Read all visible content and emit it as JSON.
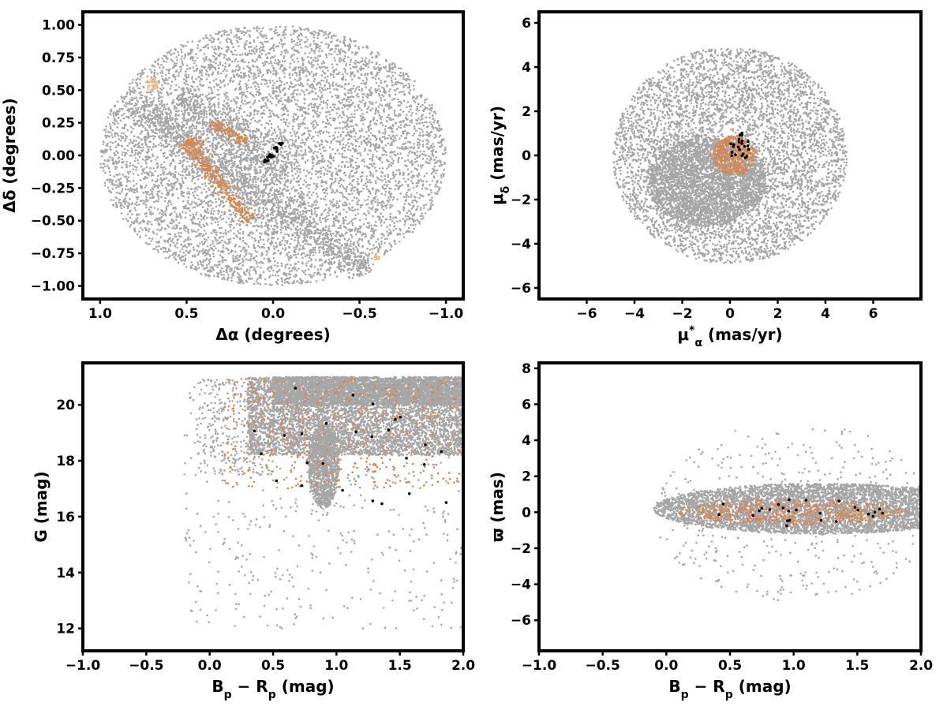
{
  "colors": {
    "field_stars": "#a6a6a6",
    "orange_members": "#d8864f",
    "light_orange": "#f2b98a",
    "black_members": "#000000"
  },
  "chart_data": [
    {
      "id": "sky",
      "type": "scatter",
      "xlabel_main": "Δα",
      "xlabel_unit": " (degrees)",
      "ylabel_main": "Δδ",
      "ylabel_unit": " (degrees)",
      "xlim": [
        1.1,
        -1.1
      ],
      "ylim": [
        -1.1,
        1.1
      ],
      "xticks": [
        1.0,
        0.5,
        0.0,
        -0.5,
        -1.0
      ],
      "xtick_labels": [
        "1.0",
        "0.5",
        "0.0",
        "−0.5",
        "−1.0"
      ],
      "yticks": [
        -1.0,
        -0.75,
        -0.5,
        -0.25,
        0.0,
        0.25,
        0.5,
        0.75,
        1.0
      ],
      "ytick_labels": [
        "−1.00",
        "−0.75",
        "−0.50",
        "−0.25",
        "0.00",
        "0.25",
        "0.50",
        "0.75",
        "1.00"
      ],
      "series": [
        {
          "role": "field",
          "color": "#a6a6a6",
          "shape": "ellipse",
          "center": [
            0.0,
            0.0
          ],
          "radius": [
            1.0,
            1.0
          ],
          "count": 7000
        },
        {
          "role": "field-stream",
          "color": "#a6a6a6",
          "shape": "band",
          "from": [
            0.8,
            0.4
          ],
          "to": [
            -0.55,
            -0.9
          ],
          "width": 0.1,
          "count": 1100
        },
        {
          "role": "field-stream",
          "color": "#a6a6a6",
          "shape": "band",
          "from": [
            0.55,
            0.45
          ],
          "to": [
            -0.05,
            -0.15
          ],
          "width": 0.12,
          "count": 500
        },
        {
          "role": "orange",
          "color": "#d8864f",
          "shape": "band",
          "from": [
            0.5,
            0.1
          ],
          "to": [
            0.13,
            -0.5
          ],
          "width": 0.05,
          "count": 320
        },
        {
          "role": "orange",
          "color": "#d8864f",
          "shape": "band",
          "from": [
            0.5,
            0.12
          ],
          "to": [
            0.4,
            0.08
          ],
          "width": 0.04,
          "count": 40
        },
        {
          "role": "orange",
          "color": "#d8864f",
          "shape": "band",
          "from": [
            0.35,
            0.25
          ],
          "to": [
            0.15,
            0.1
          ],
          "width": 0.04,
          "count": 120
        },
        {
          "role": "light-orange",
          "color": "#f2b98a",
          "shape": "ellipse",
          "center": [
            0.7,
            0.54
          ],
          "radius": [
            0.04,
            0.05
          ],
          "count": 40
        },
        {
          "role": "light-orange",
          "color": "#f2b98a",
          "shape": "ellipse",
          "center": [
            -0.6,
            -0.78
          ],
          "radius": [
            0.02,
            0.02
          ],
          "count": 14
        },
        {
          "role": "black",
          "color": "#000000",
          "shape": "band",
          "from": [
            0.05,
            -0.06
          ],
          "to": [
            -0.05,
            0.1
          ],
          "width": 0.02,
          "count": 22
        }
      ]
    },
    {
      "id": "proper-motion",
      "type": "scatter",
      "xlabel_main": "μ",
      "xlabel_sub": "α",
      "xlabel_sup": "*",
      "xlabel_unit": "  (mas/yr)",
      "ylabel_main": "μ",
      "ylabel_sub": "δ",
      "ylabel_unit": " (mas/yr)",
      "xlim": [
        -8,
        8
      ],
      "ylim": [
        -6.5,
        6.5
      ],
      "xticks": [
        -6,
        -4,
        -2,
        0,
        2,
        4,
        6
      ],
      "xtick_labels": [
        "−6",
        "−4",
        "−2",
        "0",
        "2",
        "4",
        "6"
      ],
      "yticks": [
        -6,
        -4,
        -2,
        0,
        2,
        4,
        6
      ],
      "ytick_labels": [
        "−6",
        "−4",
        "−2",
        "0",
        "2",
        "4",
        "6"
      ],
      "series": [
        {
          "role": "field",
          "color": "#a6a6a6",
          "shape": "ellipse",
          "center": [
            0.0,
            0.0
          ],
          "radius": [
            4.9,
            4.9
          ],
          "count": 6000
        },
        {
          "role": "field-core",
          "color": "#a6a6a6",
          "shape": "ellipse",
          "center": [
            -1.0,
            -1.2
          ],
          "radius": [
            2.5,
            2.0
          ],
          "count": 3000
        },
        {
          "role": "orange",
          "color": "#d8864f",
          "shape": "ellipse",
          "center": [
            0.2,
            0.0
          ],
          "radius": [
            0.9,
            0.9
          ],
          "count": 420
        },
        {
          "role": "black",
          "color": "#000000",
          "shape": "ellipse",
          "center": [
            0.4,
            0.4
          ],
          "radius": [
            0.4,
            0.7
          ],
          "count": 24
        }
      ]
    },
    {
      "id": "cmd",
      "type": "scatter",
      "xlabel_main": "B",
      "xlabel_sub": "p",
      "xlabel_mid": " − R",
      "xlabel_sub2": "p",
      "xlabel_unit": " (mag)",
      "ylabel_main": "G",
      "ylabel_unit": " (mag)",
      "xlim": [
        -1.0,
        2.0
      ],
      "ylim": [
        11.2,
        21.5
      ],
      "xticks": [
        -1.0,
        -0.5,
        0.0,
        0.5,
        1.0,
        1.5,
        2.0
      ],
      "xtick_labels": [
        "−1.0",
        "−0.5",
        "0.0",
        "0.5",
        "1.0",
        "1.5",
        "2.0"
      ],
      "yticks": [
        12,
        14,
        16,
        18,
        20
      ],
      "ytick_labels": [
        "12",
        "14",
        "16",
        "18",
        "20"
      ],
      "series": [
        {
          "role": "field",
          "color": "#a6a6a6",
          "shape": "box",
          "x": [
            0.3,
            2.0
          ],
          "y": [
            18.2,
            21.0
          ],
          "count": 7000
        },
        {
          "role": "field-upper",
          "color": "#a6a6a6",
          "shape": "box",
          "x": [
            0.5,
            2.0
          ],
          "y": [
            20.0,
            21.0
          ],
          "count": 3000
        },
        {
          "role": "field-giant-branch",
          "color": "#a6a6a6",
          "shape": "ellipse",
          "center": [
            0.9,
            17.8
          ],
          "radius": [
            0.12,
            1.5
          ],
          "count": 1200
        },
        {
          "role": "field-sparse",
          "color": "#a6a6a6",
          "shape": "box",
          "x": [
            -0.2,
            2.0
          ],
          "y": [
            12.0,
            21.0
          ],
          "count": 500
        },
        {
          "role": "field-blue",
          "color": "#a6a6a6",
          "shape": "box",
          "x": [
            -0.1,
            0.5
          ],
          "y": [
            17.5,
            21.0
          ],
          "count": 300
        },
        {
          "role": "orange",
          "color": "#d8864f",
          "shape": "box",
          "x": [
            0.1,
            2.0
          ],
          "y": [
            17.0,
            21.0
          ],
          "count": 460
        },
        {
          "role": "black",
          "color": "#000000",
          "shape": "box",
          "x": [
            0.35,
            1.9
          ],
          "y": [
            16.2,
            20.6
          ],
          "count": 26
        }
      ]
    },
    {
      "id": "parallax",
      "type": "scatter",
      "xlabel_main": "B",
      "xlabel_sub": "p",
      "xlabel_mid": " − R",
      "xlabel_sub2": "p",
      "xlabel_unit": " (mag)",
      "ylabel_main": "ϖ",
      "ylabel_unit": " (mas)",
      "xlim": [
        -1.0,
        2.0
      ],
      "ylim": [
        -7.7,
        8.3
      ],
      "xticks": [
        -1.0,
        -0.5,
        0.0,
        0.5,
        1.0,
        1.5,
        2.0
      ],
      "xtick_labels": [
        "−1.0",
        "−0.5",
        "0.0",
        "0.5",
        "1.0",
        "1.5",
        "2.0"
      ],
      "yticks": [
        -6,
        -4,
        -2,
        0,
        2,
        4,
        6,
        8
      ],
      "ytick_labels": [
        "−6",
        "−4",
        "−2",
        "0",
        "2",
        "4",
        "6",
        "8"
      ],
      "series": [
        {
          "role": "field",
          "color": "#a6a6a6",
          "shape": "ellipse",
          "center": [
            1.2,
            0.2
          ],
          "radius": [
            1.3,
            1.4
          ],
          "count": 9000
        },
        {
          "role": "field-scatter",
          "color": "#a6a6a6",
          "shape": "ellipse",
          "center": [
            1.0,
            0.0
          ],
          "radius": [
            1.1,
            5.0
          ],
          "count": 400
        },
        {
          "role": "orange",
          "color": "#d8864f",
          "shape": "ellipse",
          "center": [
            1.0,
            0.0
          ],
          "radius": [
            0.9,
            0.7
          ],
          "count": 460
        },
        {
          "role": "black",
          "color": "#000000",
          "shape": "ellipse",
          "center": [
            1.0,
            0.0
          ],
          "radius": [
            0.7,
            0.8
          ],
          "count": 26
        }
      ]
    }
  ]
}
